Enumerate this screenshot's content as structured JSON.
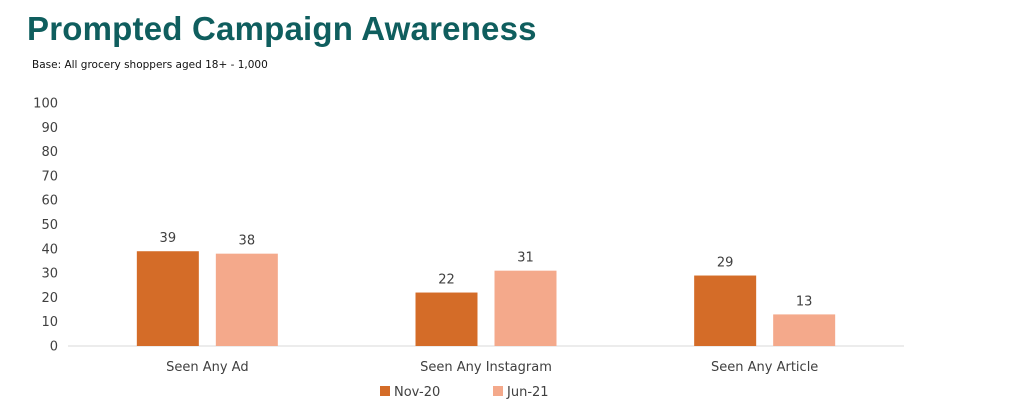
{
  "title": "Prompted Campaign Awareness",
  "subtitle": "Base: All grocery shoppers aged 18+ - 1,000",
  "colors": {
    "title": "#0f5e5e",
    "axis": "#d9d9d9",
    "text": "#404040"
  },
  "chart_data": {
    "type": "bar",
    "categories": [
      "Seen Any Ad",
      "Seen Any Instagram",
      "Seen Any Article"
    ],
    "series": [
      {
        "name": "Nov-20",
        "values": [
          39,
          22,
          29
        ],
        "color": "#d46c28"
      },
      {
        "name": "Jun-21",
        "values": [
          38,
          31,
          13
        ],
        "color": "#f4a98b"
      }
    ],
    "ylim": [
      0,
      100
    ],
    "yticks": [
      0,
      10,
      20,
      30,
      40,
      50,
      60,
      70,
      80,
      90,
      100
    ],
    "grid": false,
    "data_labels": true,
    "legend_position": "bottom-center",
    "xlabel": "",
    "ylabel": ""
  }
}
